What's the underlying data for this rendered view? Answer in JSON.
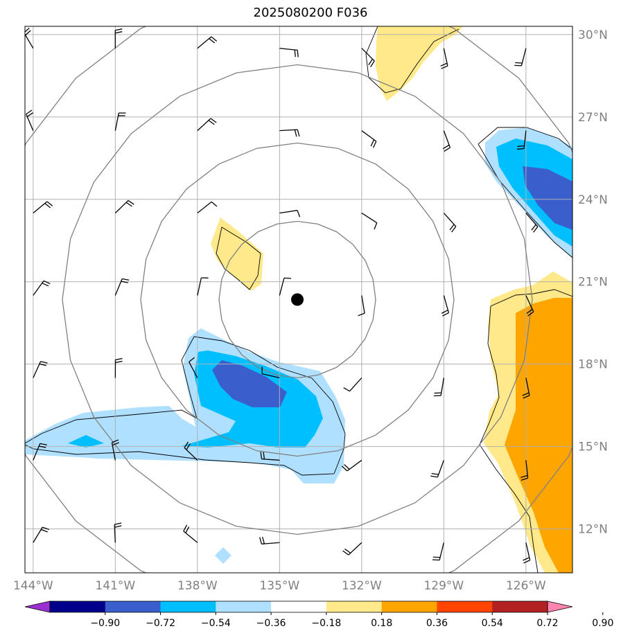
{
  "title": "2025080200 F036",
  "map": {
    "lon_range": [
      -144.3,
      -124.3
    ],
    "lat_range": [
      10.4,
      30.3
    ],
    "lat_ticks": [
      {
        "value": 30,
        "label": "30°N"
      },
      {
        "value": 27,
        "label": "27°N"
      },
      {
        "value": 24,
        "label": "24°N"
      },
      {
        "value": 21,
        "label": "21°N"
      },
      {
        "value": 18,
        "label": "18°N"
      },
      {
        "value": 15,
        "label": "15°N"
      },
      {
        "value": 12,
        "label": "12°N"
      }
    ],
    "lon_ticks": [
      {
        "value": -144,
        "label": "144°W"
      },
      {
        "value": -141,
        "label": "141°W"
      },
      {
        "value": -138,
        "label": "138°W"
      },
      {
        "value": -135,
        "label": "135°W"
      },
      {
        "value": -132,
        "label": "132°W"
      },
      {
        "value": -129,
        "label": "129°W"
      },
      {
        "value": -126,
        "label": "126°W"
      }
    ],
    "storm_center": {
      "lon": -134.35,
      "lat": 20.35
    },
    "range_rings": 4,
    "barb_lons": [
      -144,
      -141,
      -138,
      -135,
      -132,
      -129,
      -126
    ],
    "barb_lats": [
      29.5,
      26.5,
      23.5,
      20.5,
      17.5,
      14.5,
      11.5
    ]
  },
  "colorbar": {
    "colors": [
      "#9b30d0",
      "#00008b",
      "#3a5fcd",
      "#00bfff",
      "#b0e0ff",
      "#ffffff",
      "#ffe98a",
      "#ffa500",
      "#ff4500",
      "#b22222",
      "#ff85b0"
    ],
    "labels": [
      "−0.90",
      "−0.72",
      "−0.54",
      "−0.36",
      "−0.18",
      "0.18",
      "0.36",
      "0.54",
      "0.72",
      "0.90"
    ],
    "extend": "both"
  }
}
